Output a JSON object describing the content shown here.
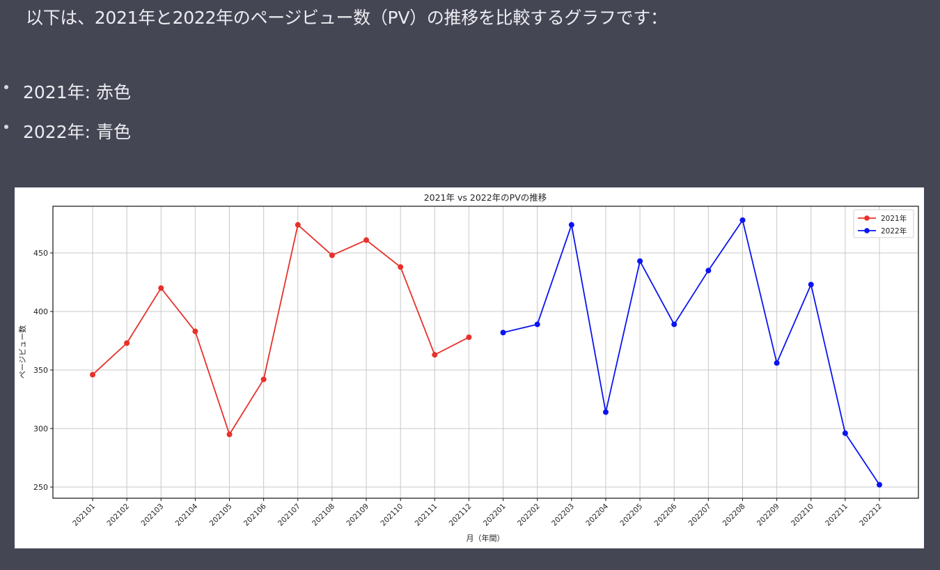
{
  "message": {
    "intro": "以下は、2021年と2022年のページビュー数（PV）の推移を比較するグラフです：",
    "bullets": [
      {
        "label": "2021年: 赤色"
      },
      {
        "label": "2022年: 青色"
      }
    ]
  },
  "colors": {
    "background": "#444654",
    "series_2021": "#e8302a",
    "series_2022": "#0a14f0",
    "grid": "#c8c8c8"
  },
  "chart_data": {
    "type": "line",
    "title": "2021年 vs 2022年のPVの推移",
    "xlabel": "月（年間）",
    "ylabel": "ページビュー数",
    "ylim": [
      240,
      490
    ],
    "yticks": [
      250,
      300,
      350,
      400,
      450
    ],
    "grid": true,
    "legend_position": "upper right",
    "x": [
      "202101",
      "202102",
      "202103",
      "202104",
      "202105",
      "202106",
      "202107",
      "202108",
      "202109",
      "202110",
      "202111",
      "202112",
      "202201",
      "202202",
      "202203",
      "202204",
      "202205",
      "202206",
      "202207",
      "202208",
      "202209",
      "202210",
      "202211",
      "202212"
    ],
    "series": [
      {
        "name": "2021年",
        "color": "#e8302a",
        "x": [
          "202101",
          "202102",
          "202103",
          "202104",
          "202105",
          "202106",
          "202107",
          "202108",
          "202109",
          "202110",
          "202111",
          "202112"
        ],
        "values": [
          346,
          373,
          420,
          383,
          295,
          342,
          474,
          448,
          461,
          438,
          363,
          378
        ]
      },
      {
        "name": "2022年",
        "color": "#0a14f0",
        "x": [
          "202201",
          "202202",
          "202203",
          "202204",
          "202205",
          "202206",
          "202207",
          "202208",
          "202209",
          "202210",
          "202211",
          "202212"
        ],
        "values": [
          382,
          389,
          474,
          314,
          443,
          389,
          435,
          478,
          356,
          423,
          296,
          252
        ]
      }
    ]
  }
}
